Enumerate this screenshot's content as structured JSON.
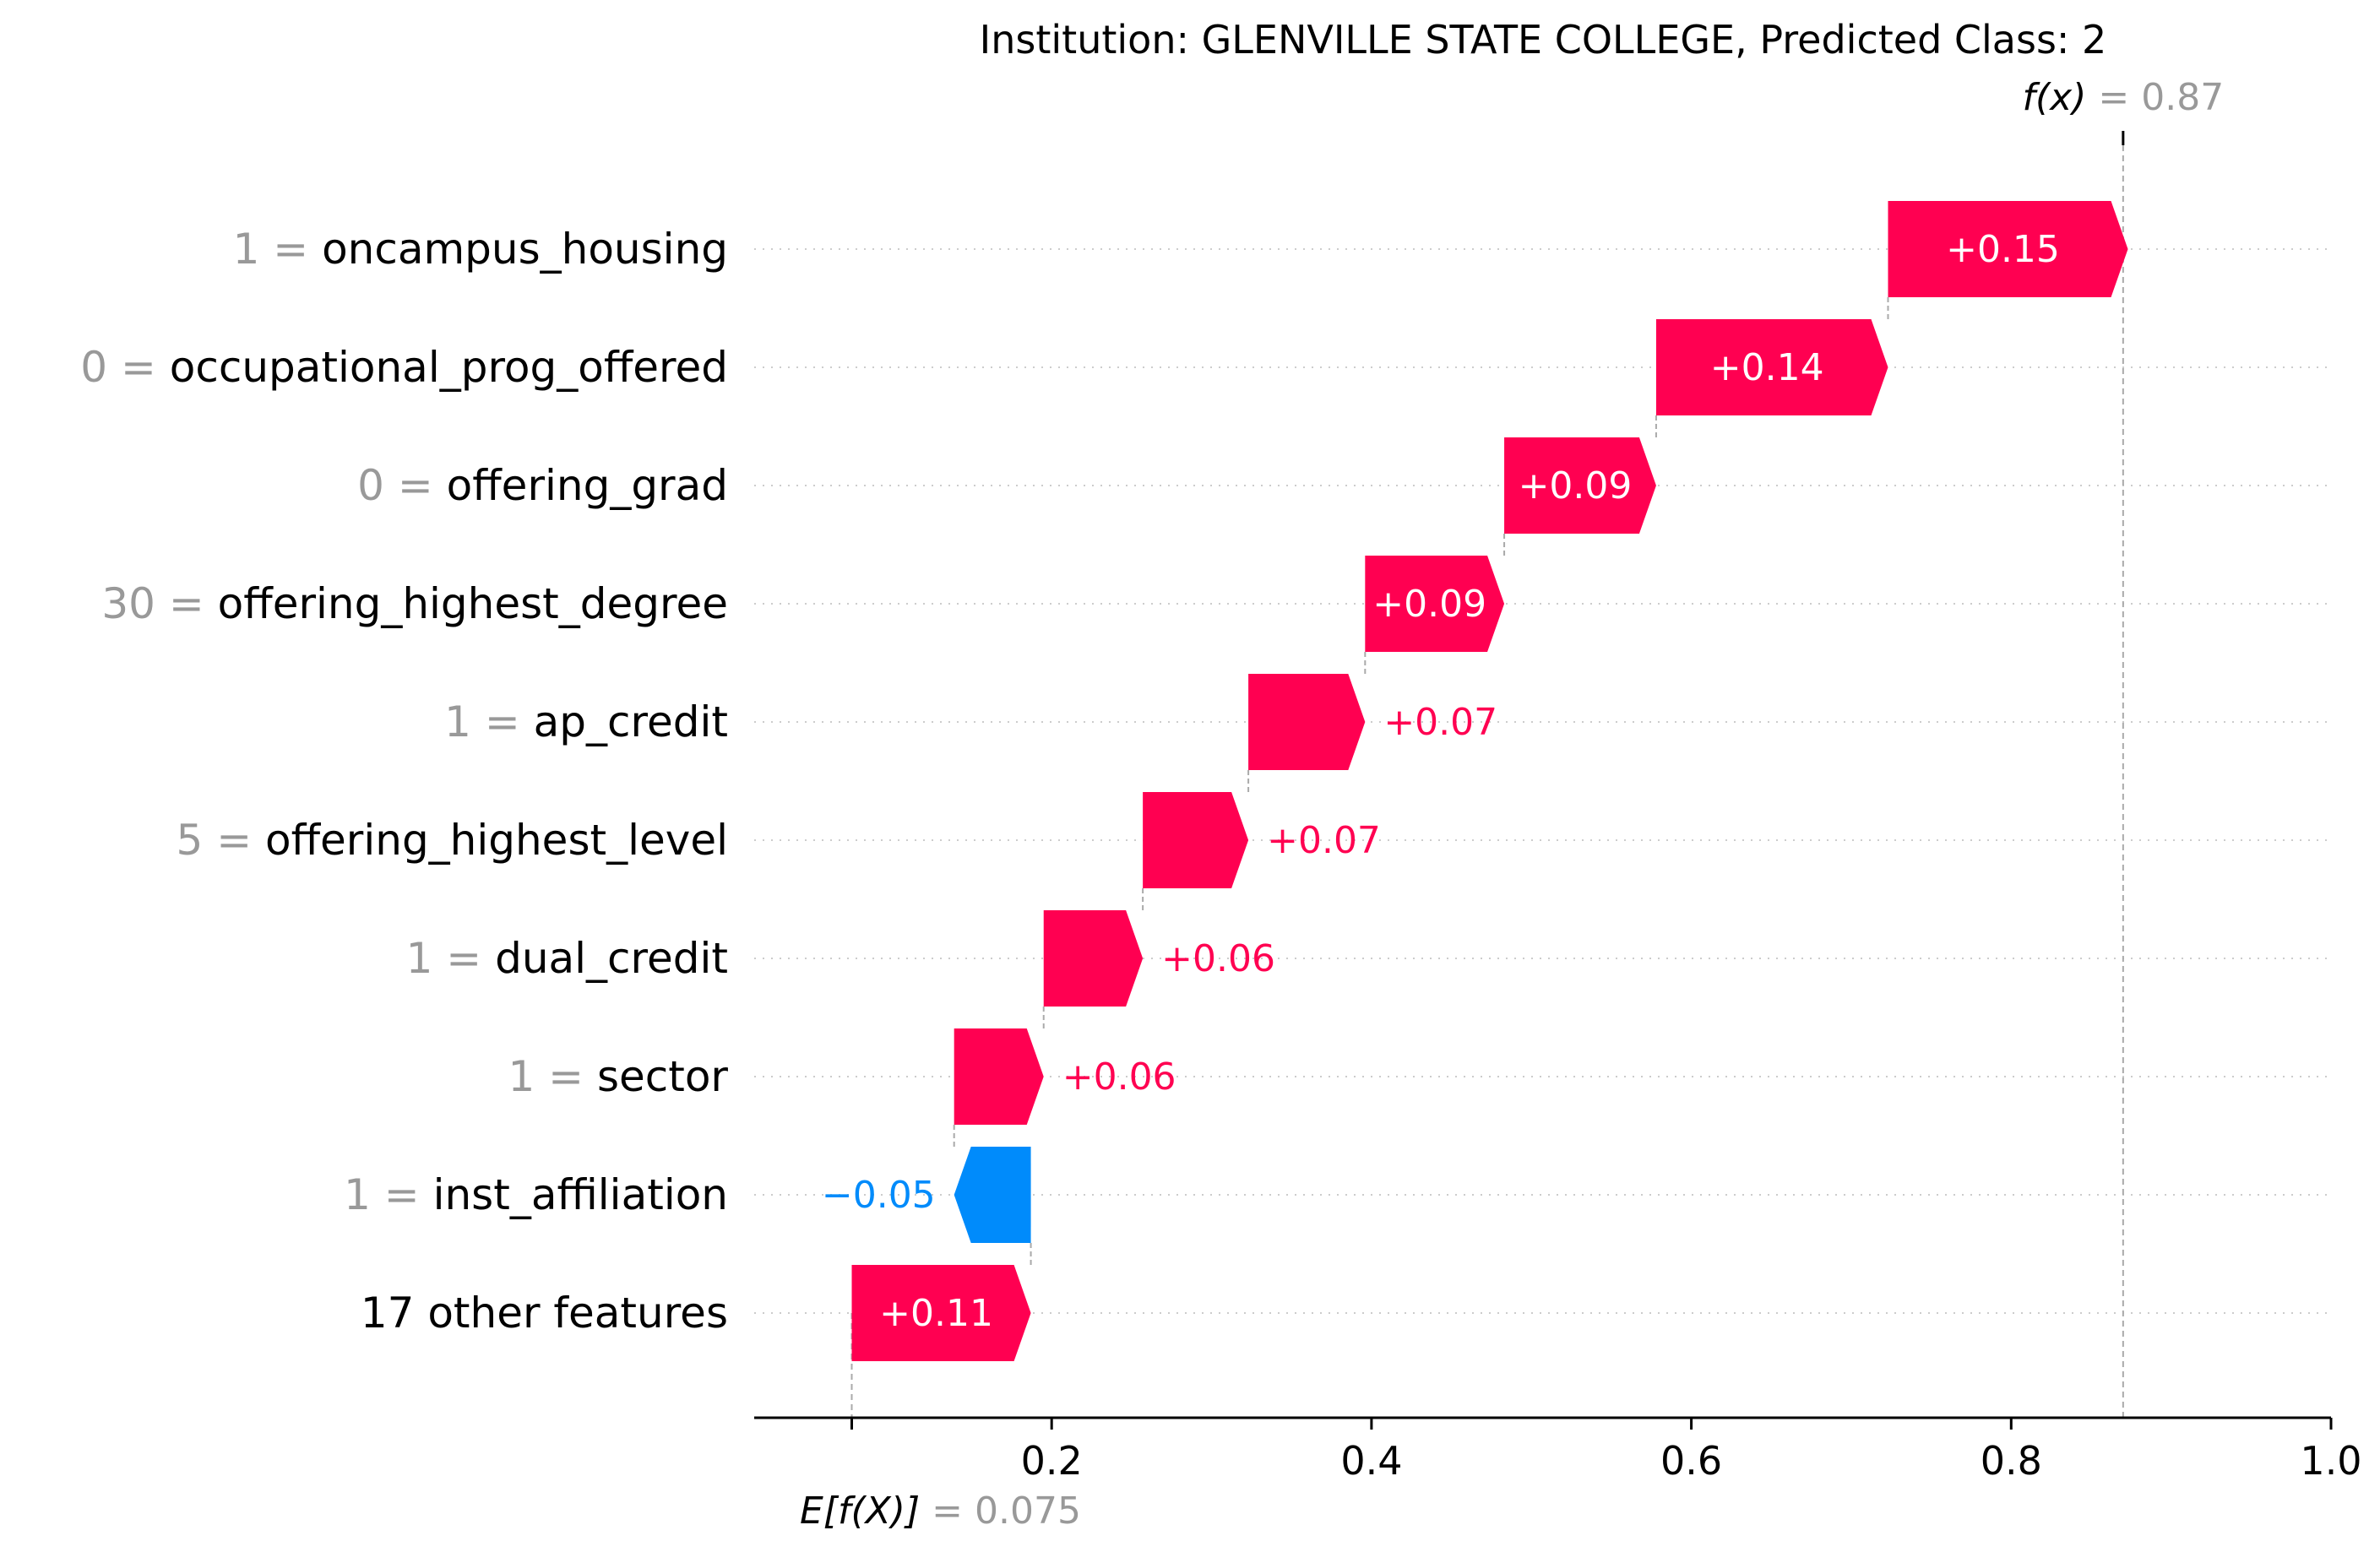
{
  "chart_data": {
    "type": "waterfall",
    "title": "Institution: GLENVILLE STATE COLLEGE, Predicted Class: 2",
    "fx_label": "f(x)",
    "fx_value_label": "= 0.87",
    "fx": 0.87,
    "base_label": "E[f(X)]",
    "base_value_label": "= 0.075",
    "base_value": 0.075,
    "x_ticks": [
      0.2,
      0.4,
      0.6,
      0.8,
      1.0
    ],
    "x_tick_labels": [
      "0.2",
      "0.4",
      "0.6",
      "0.8",
      "1.0"
    ],
    "x_range": [
      0.014,
      1.0
    ],
    "colors": {
      "positive": "#ff0051",
      "negative": "#008bfb",
      "value_text": "#999999"
    },
    "features": [
      {
        "value": "1",
        "name": "oncampus_housing",
        "contribution": 0.15,
        "label": "+0.15",
        "label_inside": true
      },
      {
        "value": "0",
        "name": "occupational_prog_offered",
        "contribution": 0.145,
        "label": "+0.14",
        "label_inside": true
      },
      {
        "value": "0",
        "name": "offering_grad",
        "contribution": 0.095,
        "label": "+0.09",
        "label_inside": true
      },
      {
        "value": "30",
        "name": "offering_highest_degree",
        "contribution": 0.087,
        "label": "+0.09",
        "label_inside": true
      },
      {
        "value": "1",
        "name": "ap_credit",
        "contribution": 0.073,
        "label": "+0.07",
        "label_inside": false
      },
      {
        "value": "5",
        "name": "offering_highest_level",
        "contribution": 0.066,
        "label": "+0.07",
        "label_inside": false
      },
      {
        "value": "1",
        "name": "dual_credit",
        "contribution": 0.062,
        "label": "+0.06",
        "label_inside": false
      },
      {
        "value": "1",
        "name": "sector",
        "contribution": 0.056,
        "label": "+0.06",
        "label_inside": false
      },
      {
        "value": "1",
        "name": "inst_affiliation",
        "contribution": -0.048,
        "label": "−0.05",
        "label_inside": false
      },
      {
        "value": "",
        "name": "17 other features",
        "contribution": 0.112,
        "label": "+0.11",
        "label_inside": true
      }
    ]
  }
}
